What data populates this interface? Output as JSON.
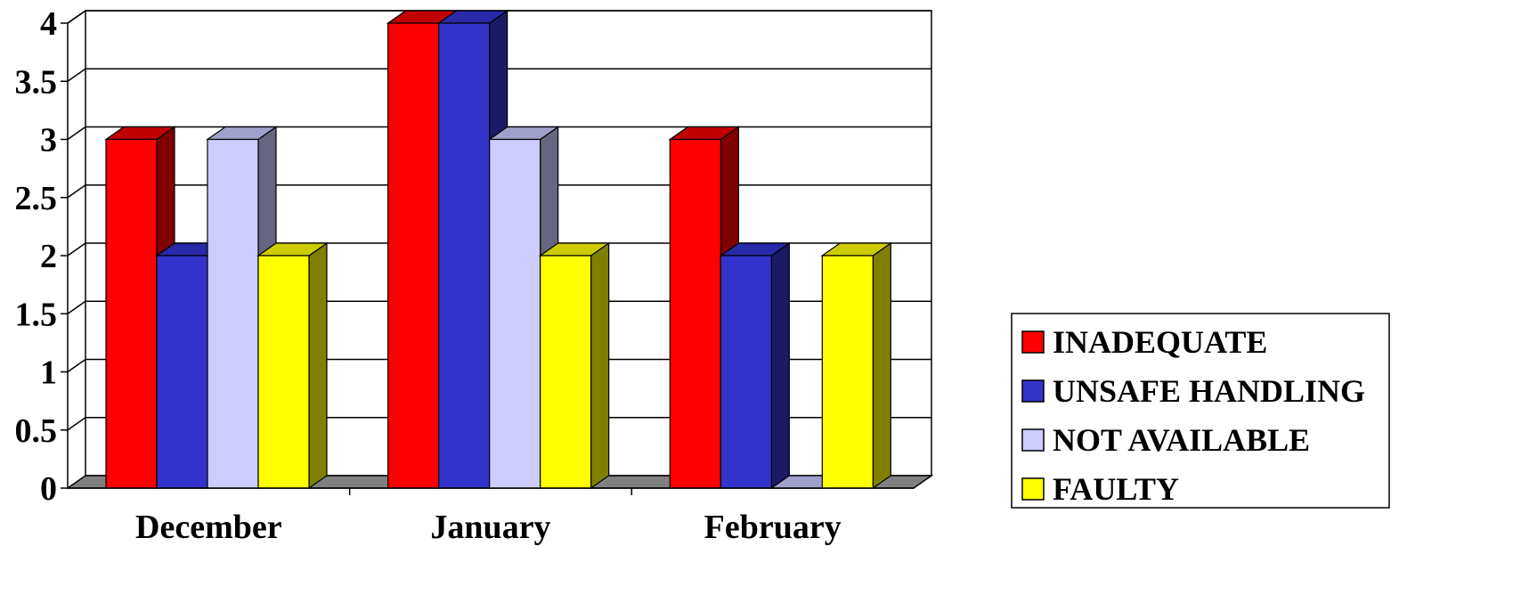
{
  "chart_data": {
    "type": "bar",
    "title": "",
    "xlabel": "",
    "ylabel": "",
    "ylim": [
      0,
      4
    ],
    "yticks": [
      "0",
      "0.5",
      "1",
      "1.5",
      "2",
      "2.5",
      "3",
      "3.5",
      "4"
    ],
    "categories": [
      "December",
      "January",
      "February"
    ],
    "series": [
      {
        "name": "INADEQUATE",
        "values": [
          3,
          4,
          3
        ],
        "color": "#FF0000",
        "side": "#800000",
        "top": "#C00000"
      },
      {
        "name": "UNSAFE HANDLING",
        "values": [
          2,
          4,
          2
        ],
        "color": "#3333CC",
        "side": "#1A1A66",
        "top": "#2828A8"
      },
      {
        "name": "NOT AVAILABLE",
        "values": [
          3,
          3,
          0
        ],
        "color": "#CCCCFF",
        "side": "#666680",
        "top": "#A0A0CC"
      },
      {
        "name": "FAULTY",
        "values": [
          2,
          2,
          2
        ],
        "color": "#FFFF00",
        "side": "#808000",
        "top": "#CCCC00"
      }
    ],
    "grid": true,
    "legend_position": "right",
    "floor_color": "#808080"
  }
}
